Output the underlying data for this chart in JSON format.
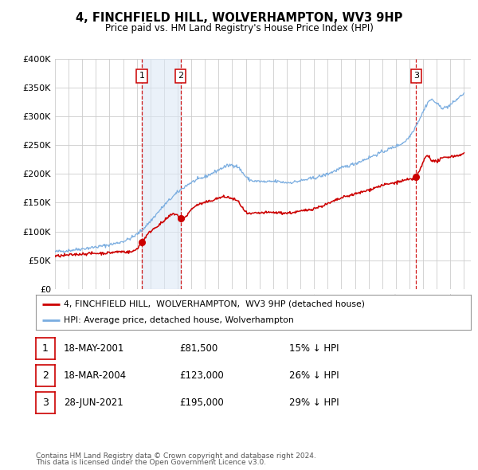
{
  "title": "4, FINCHFIELD HILL, WOLVERHAMPTON, WV3 9HP",
  "subtitle": "Price paid vs. HM Land Registry's House Price Index (HPI)",
  "ylim": [
    0,
    400000
  ],
  "yticks": [
    0,
    50000,
    100000,
    150000,
    200000,
    250000,
    300000,
    350000,
    400000
  ],
  "ytick_labels": [
    "£0",
    "£50K",
    "£100K",
    "£150K",
    "£200K",
    "£250K",
    "£300K",
    "£350K",
    "£400K"
  ],
  "xlim_start": 1995.0,
  "xlim_end": 2025.5,
  "transactions": [
    {
      "date_num": 2001.37,
      "price": 81500,
      "label": "1"
    },
    {
      "date_num": 2004.21,
      "price": 123000,
      "label": "2"
    },
    {
      "date_num": 2021.49,
      "price": 195000,
      "label": "3"
    }
  ],
  "vline_color": "#cc0000",
  "shade_color": "#dce8f5",
  "shade_alpha": 0.6,
  "property_line_color": "#cc0000",
  "hpi_line_color": "#7aade0",
  "legend_label_property": "4, FINCHFIELD HILL,  WOLVERHAMPTON,  WV3 9HP (detached house)",
  "legend_label_hpi": "HPI: Average price, detached house, Wolverhampton",
  "table_rows": [
    {
      "num": "1",
      "date": "18-MAY-2001",
      "price": "£81,500",
      "pct": "15% ↓ HPI"
    },
    {
      "num": "2",
      "date": "18-MAR-2004",
      "price": "£123,000",
      "pct": "26% ↓ HPI"
    },
    {
      "num": "3",
      "date": "28-JUN-2021",
      "price": "£195,000",
      "pct": "29% ↓ HPI"
    }
  ],
  "footnote1": "Contains HM Land Registry data © Crown copyright and database right 2024.",
  "footnote2": "This data is licensed under the Open Government Licence v3.0.",
  "background_color": "#ffffff",
  "grid_color": "#cccccc"
}
